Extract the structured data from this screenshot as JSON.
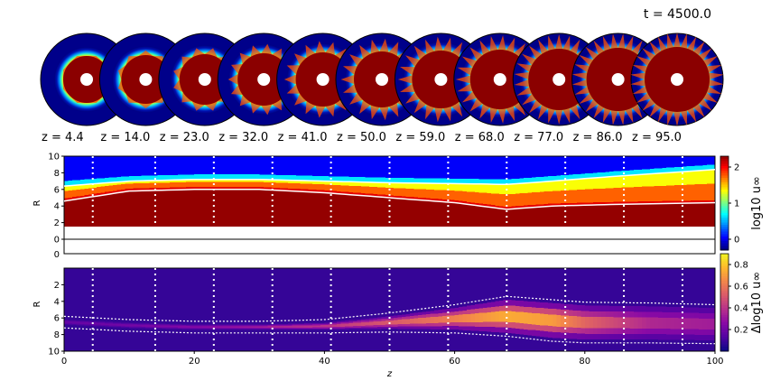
{
  "figure": {
    "time_label": "t = 4500.0"
  },
  "chart_data": [
    {
      "type": "image-strip",
      "description_key": "cross-section slices",
      "slices": [
        {
          "z": 4.4,
          "label": "z = 4.4"
        },
        {
          "z": 14.0,
          "label": "z = 14.0"
        },
        {
          "z": 23.0,
          "label": "z = 23.0"
        },
        {
          "z": 32.0,
          "label": "z = 32.0"
        },
        {
          "z": 41.0,
          "label": "z = 41.0"
        },
        {
          "z": 50.0,
          "label": "z = 50.0"
        },
        {
          "z": 59.0,
          "label": "z = 59.0"
        },
        {
          "z": 68.0,
          "label": "z = 68.0"
        },
        {
          "z": 77.0,
          "label": "z = 77.0"
        },
        {
          "z": 86.0,
          "label": "z = 86.0"
        },
        {
          "z": 95.0,
          "label": "z = 95.0"
        }
      ]
    },
    {
      "type": "heatmap",
      "xlabel": "",
      "ylabel": "R",
      "xlim": [
        0,
        100
      ],
      "ylim": [
        0,
        10
      ],
      "yticks": [
        0,
        2,
        4,
        6,
        8,
        10
      ],
      "colormap": "jet",
      "colorbar": {
        "label": "log10 u∞",
        "ticks": [
          0,
          1,
          2
        ],
        "range": [
          -0.3,
          2.3
        ]
      },
      "core_radius": 1.6,
      "jet_profile": {
        "z": [
          0,
          5,
          10,
          20,
          30,
          40,
          50,
          60,
          68,
          75,
          85,
          100
        ],
        "inner_edge": [
          4.6,
          5.2,
          5.8,
          6.0,
          6.0,
          5.6,
          5.0,
          4.4,
          3.6,
          4.0,
          4.2,
          4.4
        ],
        "outer_edge": [
          6.4,
          6.7,
          7.0,
          7.2,
          7.2,
          7.0,
          6.8,
          6.7,
          6.6,
          7.0,
          7.6,
          8.4
        ]
      },
      "slice_lines_z": [
        4.4,
        14.0,
        23.0,
        32.0,
        41.0,
        50.0,
        59.0,
        68.0,
        77.0,
        86.0,
        95.0
      ]
    },
    {
      "type": "heatmap",
      "xlabel": "z",
      "ylabel": "R",
      "xlim": [
        0,
        100
      ],
      "ylim": [
        10,
        0
      ],
      "xticks": [
        0,
        20,
        40,
        60,
        80,
        100
      ],
      "yticks": [
        2,
        4,
        6,
        8,
        10
      ],
      "colormap": "plasma",
      "colorbar": {
        "label": "Δlog10 u∞",
        "ticks": [
          0.2,
          0.4,
          0.6,
          0.8
        ],
        "range": [
          0,
          0.9
        ]
      },
      "mixing_profile": {
        "z": [
          0,
          10,
          20,
          30,
          40,
          50,
          60,
          68,
          75,
          80,
          90,
          100
        ],
        "top": [
          6.2,
          6.6,
          6.8,
          6.8,
          6.6,
          5.8,
          4.8,
          3.8,
          4.2,
          4.5,
          4.6,
          4.8
        ],
        "bottom": [
          6.8,
          7.2,
          7.4,
          7.4,
          7.4,
          7.3,
          7.4,
          7.8,
          8.4,
          8.6,
          8.6,
          8.7
        ],
        "peak": [
          0.1,
          0.15,
          0.2,
          0.3,
          0.4,
          0.55,
          0.7,
          0.85,
          0.8,
          0.6,
          0.35,
          0.3
        ]
      },
      "slice_lines_z": [
        4.4,
        14.0,
        23.0,
        32.0,
        41.0,
        50.0,
        59.0,
        68.0,
        77.0,
        86.0,
        95.0
      ]
    }
  ]
}
